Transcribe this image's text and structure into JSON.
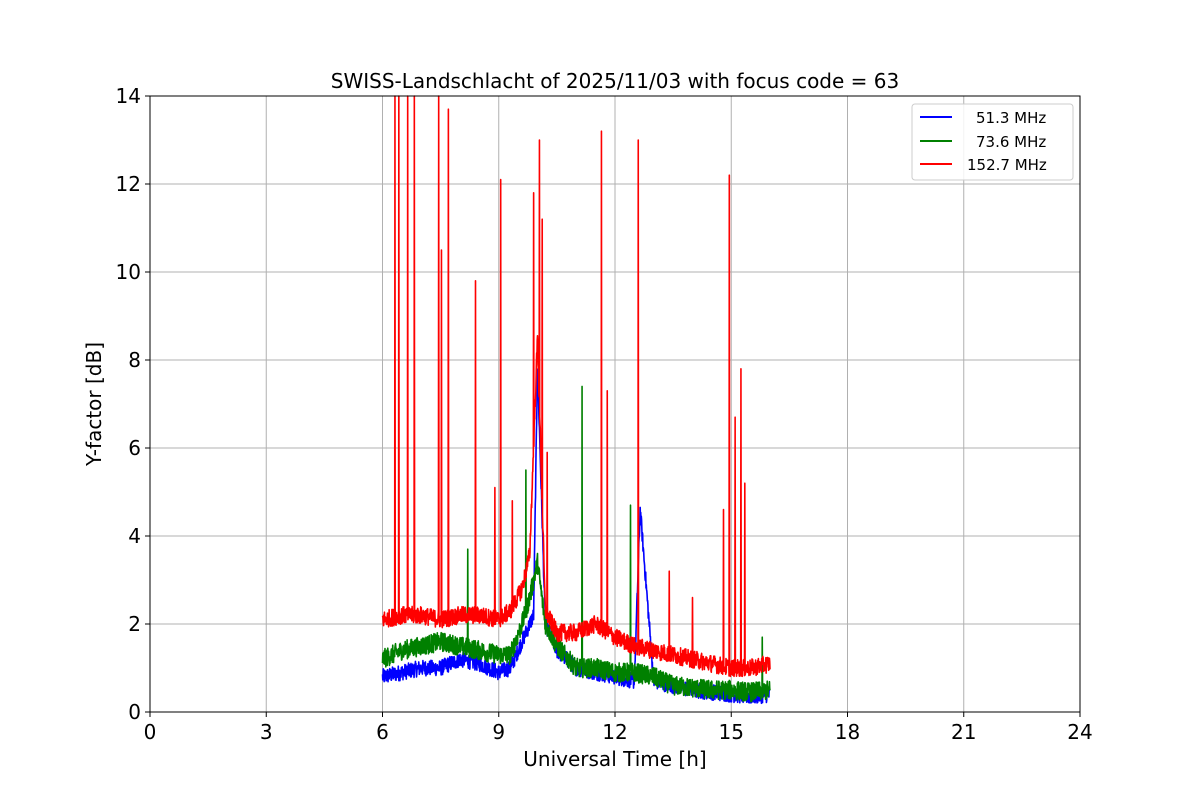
{
  "chart_data": {
    "type": "line",
    "title": "SWISS-Landschlacht of 2025/11/03 with focus code = 63",
    "xlabel": "Universal Time [h]",
    "ylabel": "Y-factor [dB]",
    "xlim": [
      0,
      24
    ],
    "ylim": [
      0,
      14
    ],
    "xticks": [
      0,
      3,
      6,
      9,
      12,
      15,
      18,
      21,
      24
    ],
    "yticks": [
      0,
      2,
      4,
      6,
      8,
      10,
      12,
      14
    ],
    "grid": true,
    "legend_position": "top-right",
    "series": [
      {
        "name": "51.3 MHz",
        "color": "#0000ff",
        "x": [
          6.0,
          6.5,
          7.0,
          7.5,
          8.0,
          8.5,
          9.0,
          9.3,
          9.6,
          9.9,
          10.0,
          10.2,
          10.5,
          11.0,
          11.5,
          12.0,
          12.5,
          12.65,
          13.0,
          13.5,
          14.0,
          14.5,
          15.0,
          15.5,
          16.0
        ],
        "y": [
          0.8,
          0.9,
          1.0,
          1.0,
          1.2,
          1.1,
          0.9,
          1.0,
          1.6,
          2.2,
          7.9,
          2.0,
          1.4,
          1.0,
          0.9,
          0.8,
          0.7,
          4.6,
          0.7,
          0.6,
          0.5,
          0.45,
          0.4,
          0.35,
          0.4
        ],
        "spikes": []
      },
      {
        "name": "73.6 MHz",
        "color": "#008000",
        "x": [
          6.0,
          6.5,
          7.0,
          7.5,
          8.0,
          8.5,
          9.0,
          9.3,
          9.6,
          9.8,
          10.0,
          10.2,
          10.5,
          11.0,
          11.5,
          12.0,
          12.5,
          13.0,
          13.5,
          14.0,
          14.5,
          15.0,
          15.5,
          16.0
        ],
        "y": [
          1.2,
          1.4,
          1.5,
          1.6,
          1.5,
          1.4,
          1.3,
          1.3,
          2.0,
          2.6,
          3.4,
          2.0,
          1.5,
          1.0,
          1.0,
          0.9,
          0.9,
          0.8,
          0.6,
          0.55,
          0.5,
          0.5,
          0.45,
          0.5
        ],
        "spikes": [
          {
            "x": 8.2,
            "y": 3.7
          },
          {
            "x": 9.7,
            "y": 5.5
          },
          {
            "x": 11.15,
            "y": 7.4
          },
          {
            "x": 12.4,
            "y": 4.7
          },
          {
            "x": 15.8,
            "y": 1.7
          }
        ]
      },
      {
        "name": "152.7 MHz",
        "color": "#ff0000",
        "x": [
          6.0,
          6.5,
          7.0,
          7.5,
          8.0,
          8.5,
          9.0,
          9.3,
          9.6,
          9.8,
          10.0,
          10.2,
          10.5,
          11.0,
          11.5,
          12.0,
          12.5,
          13.0,
          13.5,
          14.0,
          14.5,
          15.0,
          15.5,
          16.0
        ],
        "y": [
          2.1,
          2.2,
          2.2,
          2.1,
          2.2,
          2.2,
          2.1,
          2.3,
          2.8,
          3.6,
          8.5,
          2.3,
          1.8,
          1.8,
          2.0,
          1.7,
          1.5,
          1.4,
          1.3,
          1.2,
          1.1,
          1.0,
          1.0,
          1.1
        ],
        "spikes": [
          {
            "x": 6.32,
            "y": 14.0
          },
          {
            "x": 6.42,
            "y": 14.0
          },
          {
            "x": 6.65,
            "y": 14.0
          },
          {
            "x": 6.82,
            "y": 14.0
          },
          {
            "x": 7.45,
            "y": 14.0
          },
          {
            "x": 7.52,
            "y": 10.5
          },
          {
            "x": 7.7,
            "y": 13.7
          },
          {
            "x": 8.4,
            "y": 9.8
          },
          {
            "x": 8.9,
            "y": 5.1
          },
          {
            "x": 9.05,
            "y": 12.1
          },
          {
            "x": 9.35,
            "y": 4.8
          },
          {
            "x": 9.9,
            "y": 11.8
          },
          {
            "x": 10.05,
            "y": 13.0
          },
          {
            "x": 10.12,
            "y": 11.2
          },
          {
            "x": 10.25,
            "y": 5.9
          },
          {
            "x": 11.65,
            "y": 13.2
          },
          {
            "x": 11.8,
            "y": 7.3
          },
          {
            "x": 12.6,
            "y": 13.0
          },
          {
            "x": 13.4,
            "y": 3.2
          },
          {
            "x": 14.0,
            "y": 2.6
          },
          {
            "x": 14.8,
            "y": 4.6
          },
          {
            "x": 14.95,
            "y": 12.2
          },
          {
            "x": 15.1,
            "y": 6.7
          },
          {
            "x": 15.25,
            "y": 7.8
          },
          {
            "x": 15.35,
            "y": 5.2
          }
        ]
      }
    ]
  }
}
